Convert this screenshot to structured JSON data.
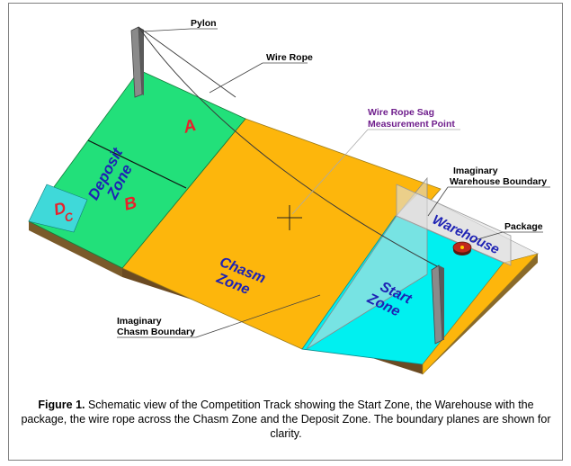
{
  "labels": {
    "pylon": "Pylon",
    "wire_rope": "Wire Rope",
    "sag_point_line1": "Wire Rope Sag",
    "sag_point_line2": "Measurement Point",
    "warehouse_boundary_line1": "Imaginary",
    "warehouse_boundary_line2": "Warehouse Boundary",
    "package": "Package",
    "chasm_boundary_line1": "Imaginary",
    "chasm_boundary_line2": "Chasm Boundary"
  },
  "zones": {
    "deposit_line1": "Deposit",
    "deposit_line2": "Zone",
    "region_a": "A",
    "region_b": "B",
    "region_d": "D",
    "region_c": "C",
    "chasm_line1": "Chasm",
    "chasm_line2": "Zone",
    "start_line1": "Start",
    "start_line2": "Zone",
    "warehouse": "Warehouse"
  },
  "caption": {
    "label": "Figure 1.",
    "text": " Schematic view of the Competition Track showing the Start Zone, the Warehouse with the package, the wire rope across the Chasm Zone and the Deposit Zone. The boundary planes are shown for clarity."
  },
  "colors": {
    "deposit_zone": "#22e07a",
    "chasm_zone": "#fdb60c",
    "start_zone": "#00f0f0",
    "region_label": "#e8212b",
    "zone_text": "#1e22b4",
    "sag_label": "#6f1e8c",
    "base": "#a86a2a"
  }
}
